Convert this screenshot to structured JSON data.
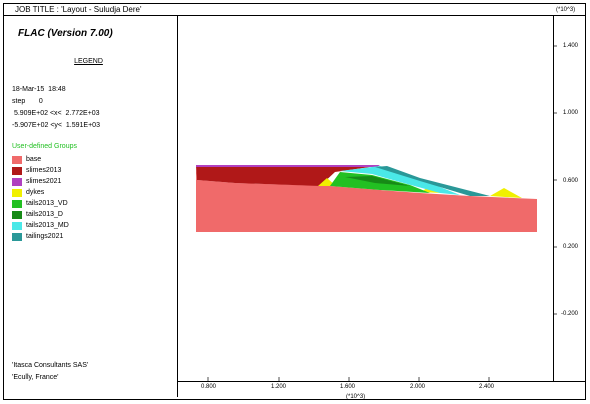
{
  "header": {
    "job_title": "JOB TITLE : 'Layout - Suludja Dere'",
    "y_unit": "(*10^3)"
  },
  "legend": {
    "code": "FLAC (Version 7.00)",
    "title": "LEGEND",
    "date": "18-Mar-15  18:48",
    "step": "step       0",
    "x_range": " 5.909E+02 <x<  2.772E+03",
    "y_range": "-5.907E+02 <y<  1.591E+03",
    "groups_title": "User-defined Groups",
    "groups": [
      {
        "label": "base",
        "color": "#f06a6a"
      },
      {
        "label": "slimes2013",
        "color": "#b01818"
      },
      {
        "label": "slimes2021",
        "color": "#b040c0"
      },
      {
        "label": "dykes",
        "color": "#f0f000"
      },
      {
        "label": "tails2013_VD",
        "color": "#22c022"
      },
      {
        "label": "tails2013_D",
        "color": "#178a17"
      },
      {
        "label": "tails2013_MD",
        "color": "#4ae8e8"
      },
      {
        "label": "tailings2021",
        "color": "#2a9898"
      }
    ]
  },
  "footer": {
    "line1": "'Itasca Consultants SAS'",
    "line2": "'Ecully, France'"
  },
  "axes": {
    "x_ticks": [
      "0.800",
      "1.200",
      "1.600",
      "2.000",
      "2.400"
    ],
    "x_unit": "(*10^3)",
    "y_ticks": [
      "1.400",
      "1.000",
      "0.600",
      "0.200",
      "-0.200"
    ]
  }
}
